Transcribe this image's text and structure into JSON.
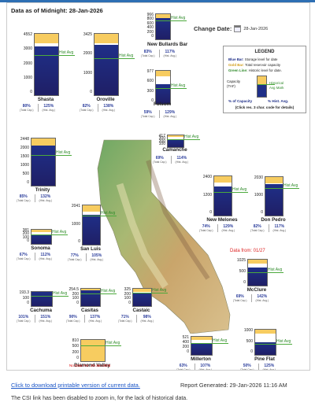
{
  "header": {
    "as_of": "Data as of Midnight: 28-Jan-2026"
  },
  "change_date": {
    "label": "Change Date:",
    "value": "28-Jan-2026"
  },
  "hist_avg_label": "Hist Avg",
  "total_cap_label": "(Total Cap.)",
  "hist_avg_short_label": "(Hist. Avg.)",
  "colors": {
    "storage": "#1f2f88",
    "capacity": "#f7cc60",
    "historic": "#4caa3c"
  },
  "reservoirs": [
    {
      "key": "shasta",
      "name": "Shasta",
      "ticks": [
        "4552",
        "3000",
        "2000",
        "1000",
        "0"
      ],
      "fill_pct": 0.8,
      "hist_pct": 0.64,
      "pct_cap": "80%",
      "pct_hist": "125%"
    },
    {
      "key": "oroville",
      "name": "Oroville",
      "ticks": [
        "3425",
        "2000",
        "1000",
        "0"
      ],
      "fill_pct": 0.82,
      "hist_pct": 0.59,
      "pct_cap": "82%",
      "pct_hist": "138%"
    },
    {
      "key": "new-bullards-bar",
      "name": "New Bullards Bar",
      "ticks": [
        "966",
        "800",
        "600",
        "400",
        "200",
        "0"
      ],
      "fill_pct": 0.83,
      "hist_pct": 0.71,
      "pct_cap": "83%",
      "pct_hist": "117%"
    },
    {
      "key": "folsom",
      "name": "Folsom",
      "ticks": [
        "977",
        "600",
        "300",
        "0"
      ],
      "fill_pct": 0.59,
      "hist_pct": 0.46,
      "pct_cap": "59%",
      "pct_hist": "129%"
    },
    {
      "key": "trinity",
      "name": "Trinity",
      "ticks": [
        "2448",
        "2000",
        "1500",
        "1000",
        "500",
        "0"
      ],
      "fill_pct": 0.85,
      "hist_pct": 0.64,
      "pct_cap": "85%",
      "pct_hist": "132%"
    },
    {
      "key": "camanche",
      "name": "Camanche",
      "ticks": [
        "417",
        "300",
        "200",
        "100"
      ],
      "fill_pct": 0.69,
      "hist_pct": 0.61,
      "pct_cap": "69%",
      "pct_hist": "114%"
    },
    {
      "key": "new-melones",
      "name": "New Melones",
      "ticks": [
        "2400",
        "1200",
        "0"
      ],
      "fill_pct": 0.74,
      "hist_pct": 0.58,
      "pct_cap": "74%",
      "pct_hist": "129%"
    },
    {
      "key": "don-pedro",
      "name": "Don Pedro",
      "ticks": [
        "2030",
        "1000",
        "0"
      ],
      "fill_pct": 0.82,
      "hist_pct": 0.7,
      "pct_cap": "82%",
      "pct_hist": "117%"
    },
    {
      "key": "sonoma",
      "name": "Sonoma",
      "ticks": [
        "381",
        "200",
        "100",
        "0"
      ],
      "fill_pct": 0.67,
      "hist_pct": 0.6,
      "pct_cap": "67%",
      "pct_hist": "112%"
    },
    {
      "key": "san-luis",
      "name": "San Luis",
      "ticks": [
        "2041",
        "1000",
        "0"
      ],
      "fill_pct": 0.77,
      "hist_pct": 0.73,
      "pct_cap": "77%",
      "pct_hist": "105%"
    },
    {
      "key": "mcclure",
      "name": "McClure",
      "ticks": [
        "1025",
        "500",
        "0"
      ],
      "fill_pct": 0.69,
      "hist_pct": 0.48,
      "pct_cap": "69%",
      "pct_hist": "142%"
    },
    {
      "key": "cachuma",
      "name": "Cachuma",
      "ticks": [
        "193.3",
        "100",
        "0"
      ],
      "fill_pct": 1.0,
      "hist_pct": 0.66,
      "pct_cap": "101%",
      "pct_hist": "151%"
    },
    {
      "key": "casitas",
      "name": "Casitas",
      "ticks": [
        "254.5",
        "200",
        "100",
        "0"
      ],
      "fill_pct": 0.9,
      "hist_pct": 0.66,
      "pct_cap": "90%",
      "pct_hist": "137%"
    },
    {
      "key": "castaic",
      "name": "Castaic",
      "ticks": [
        "325",
        "200",
        "100",
        "0"
      ],
      "fill_pct": 0.71,
      "hist_pct": 0.72,
      "pct_cap": "71%",
      "pct_hist": "98%"
    },
    {
      "key": "diamond-valley",
      "name": "Diamond Valley",
      "ticks": [
        "810",
        "500",
        "200",
        "0"
      ],
      "fill_pct": 0.0,
      "hist_pct": 0.72,
      "pct_cap": "",
      "pct_hist": ""
    },
    {
      "key": "millerton",
      "name": "Millerton",
      "ticks": [
        "521",
        "400",
        "200",
        "0"
      ],
      "fill_pct": 0.63,
      "hist_pct": 0.59,
      "pct_cap": "63%",
      "pct_hist": "107%"
    },
    {
      "key": "pine-flat",
      "name": "Pine Flat",
      "ticks": [
        "1000",
        "500",
        "0"
      ],
      "fill_pct": 0.5,
      "hist_pct": 0.4,
      "pct_cap": "50%",
      "pct_hist": "125%"
    }
  ],
  "diamond_valley_note": "No Data For: 28-Jan-2026",
  "mcclure_data_from": "Data from: 01/27",
  "legend": {
    "title": "LEGEND",
    "blue_bar": "Blue Bar:",
    "blue_bar_desc": "Storage level for date",
    "gold_bar": "Gold Bar:",
    "gold_bar_desc": "Total reservoir capacity",
    "green_line": "Green Line:",
    "green_line_desc": "Historic level for date.",
    "capacity": "Capacity",
    "taf": "(TAF)",
    "historical": "Historical",
    "avg_mark": "Avg Mark",
    "pct_capacity": "% of Capacity",
    "pct_hist": "% Hist. Avg.",
    "click": "(Click res. 3 char. code for details)"
  },
  "footer": {
    "download_link": "Click to download printable version of current data.",
    "report_generated": "Report Generated: 29-Jan-2026 11:16 AM",
    "csi_note": "The CSI link has been disabled to zoom in, for the lack of historical data."
  }
}
